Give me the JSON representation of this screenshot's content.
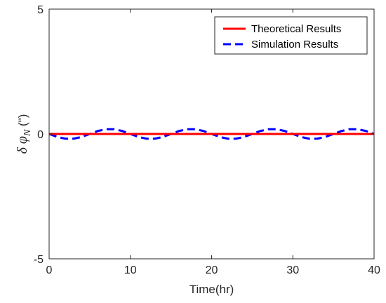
{
  "chart_data": {
    "type": "line",
    "title": "",
    "xlabel": "Time(hr)",
    "ylabel": {
      "prefix": "δ φ",
      "subscript": "N",
      "unit": " (\")"
    },
    "xlim": [
      0,
      40
    ],
    "ylim": [
      -5,
      5
    ],
    "xticks": [
      0,
      10,
      20,
      30,
      40
    ],
    "yticks": [
      -5,
      0,
      5
    ],
    "grid": false,
    "legend_position": "top-right",
    "series": [
      {
        "name": "Theoretical Results",
        "color": "#ff0000",
        "style": "solid",
        "x": [
          0,
          40
        ],
        "y": [
          0,
          0
        ]
      },
      {
        "name": "Simulation Results",
        "color": "#0000ff",
        "style": "dashed",
        "x": [
          0,
          1,
          2,
          3,
          4,
          5,
          6,
          7,
          8,
          9,
          10,
          11,
          12,
          13,
          14,
          15,
          16,
          17,
          18,
          19,
          20,
          21,
          22,
          23,
          24,
          25,
          26,
          27,
          28,
          29,
          30,
          31,
          32,
          33,
          34,
          35,
          36,
          37,
          38,
          39,
          40
        ],
        "y": [
          0,
          -0.12,
          -0.19,
          -0.19,
          -0.12,
          0,
          0.12,
          0.19,
          0.19,
          0.12,
          0,
          -0.12,
          -0.19,
          -0.19,
          -0.12,
          0,
          0.12,
          0.19,
          0.19,
          0.12,
          0,
          -0.12,
          -0.19,
          -0.19,
          -0.12,
          0,
          0.12,
          0.19,
          0.19,
          0.12,
          0,
          -0.12,
          -0.19,
          -0.19,
          -0.12,
          0,
          0.12,
          0.19,
          0.19,
          0.12,
          0
        ]
      }
    ]
  }
}
